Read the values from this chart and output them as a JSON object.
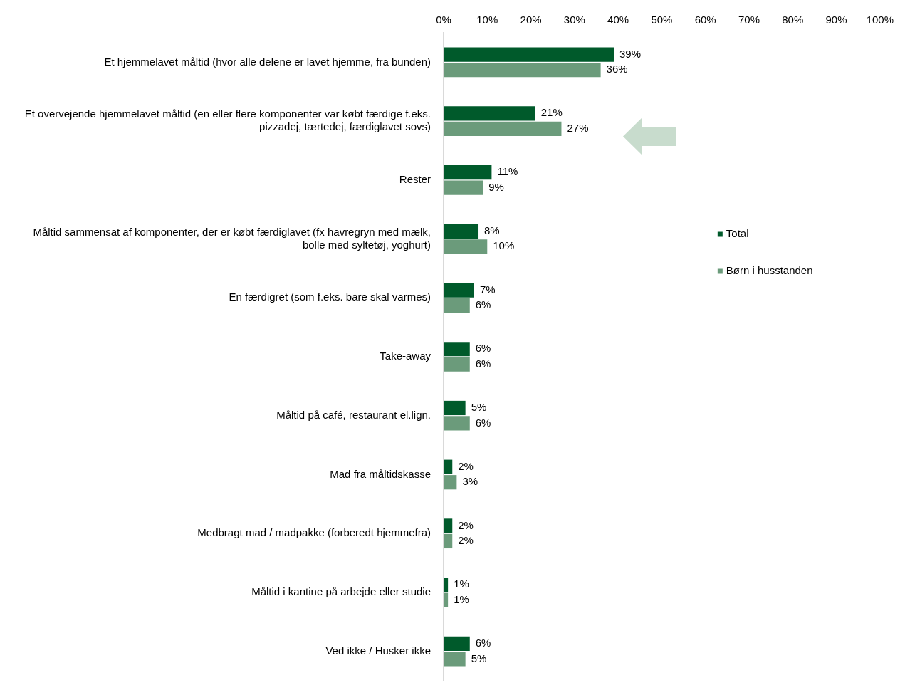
{
  "chart_data": {
    "type": "bar",
    "orientation": "horizontal",
    "categories": [
      "Et hjemmelavet måltid (hvor alle delene er lavet hjemme, fra bunden)",
      "Et overvejende hjemmelavet måltid (en eller flere komponenter var købt færdige f.eks. pizzadej, tærtedej, færdiglavet sovs)",
      "Rester",
      "Måltid sammensat af komponenter, der er købt færdiglavet (fx havregryn med mælk, bolle med syltetøj, yoghurt)",
      "En færdigret (som f.eks. bare skal varmes)",
      "Take-away",
      "Måltid på café, restaurant el.lign.",
      "Mad fra måltidskasse",
      "Medbragt mad / madpakke (forberedt hjemmefra)",
      "Måltid i kantine på arbejde eller studie",
      "Ved ikke / Husker ikke"
    ],
    "series": [
      {
        "name": "Total",
        "color": "#005a2b",
        "values": [
          39,
          21,
          11,
          8,
          7,
          6,
          5,
          2,
          2,
          1,
          6
        ],
        "value_labels": [
          "39%",
          "21%",
          "11%",
          "8%",
          "7%",
          "6%",
          "5%",
          "2%",
          "2%",
          "1%",
          "6%"
        ]
      },
      {
        "name": "Børn i husstanden",
        "color": "#6b9b7b",
        "values": [
          36,
          27,
          9,
          10,
          6,
          6,
          6,
          3,
          2,
          1,
          5
        ],
        "value_labels": [
          "36%",
          "27%",
          "9%",
          "10%",
          "6%",
          "6%",
          "6%",
          "3%",
          "2%",
          "1%",
          "5%"
        ]
      }
    ],
    "xlim": [
      0,
      100
    ],
    "xticks": [
      {
        "value": 0,
        "label": "0%"
      },
      {
        "value": 10,
        "label": "10%"
      },
      {
        "value": 20,
        "label": "20%"
      },
      {
        "value": 30,
        "label": "30%"
      },
      {
        "value": 40,
        "label": "40%"
      },
      {
        "value": 50,
        "label": "50%"
      },
      {
        "value": 60,
        "label": "60%"
      },
      {
        "value": 70,
        "label": "70%"
      },
      {
        "value": 80,
        "label": "80%"
      },
      {
        "value": 90,
        "label": "90%"
      },
      {
        "value": 100,
        "label": "100%"
      }
    ],
    "grid": false,
    "legend": "right"
  }
}
